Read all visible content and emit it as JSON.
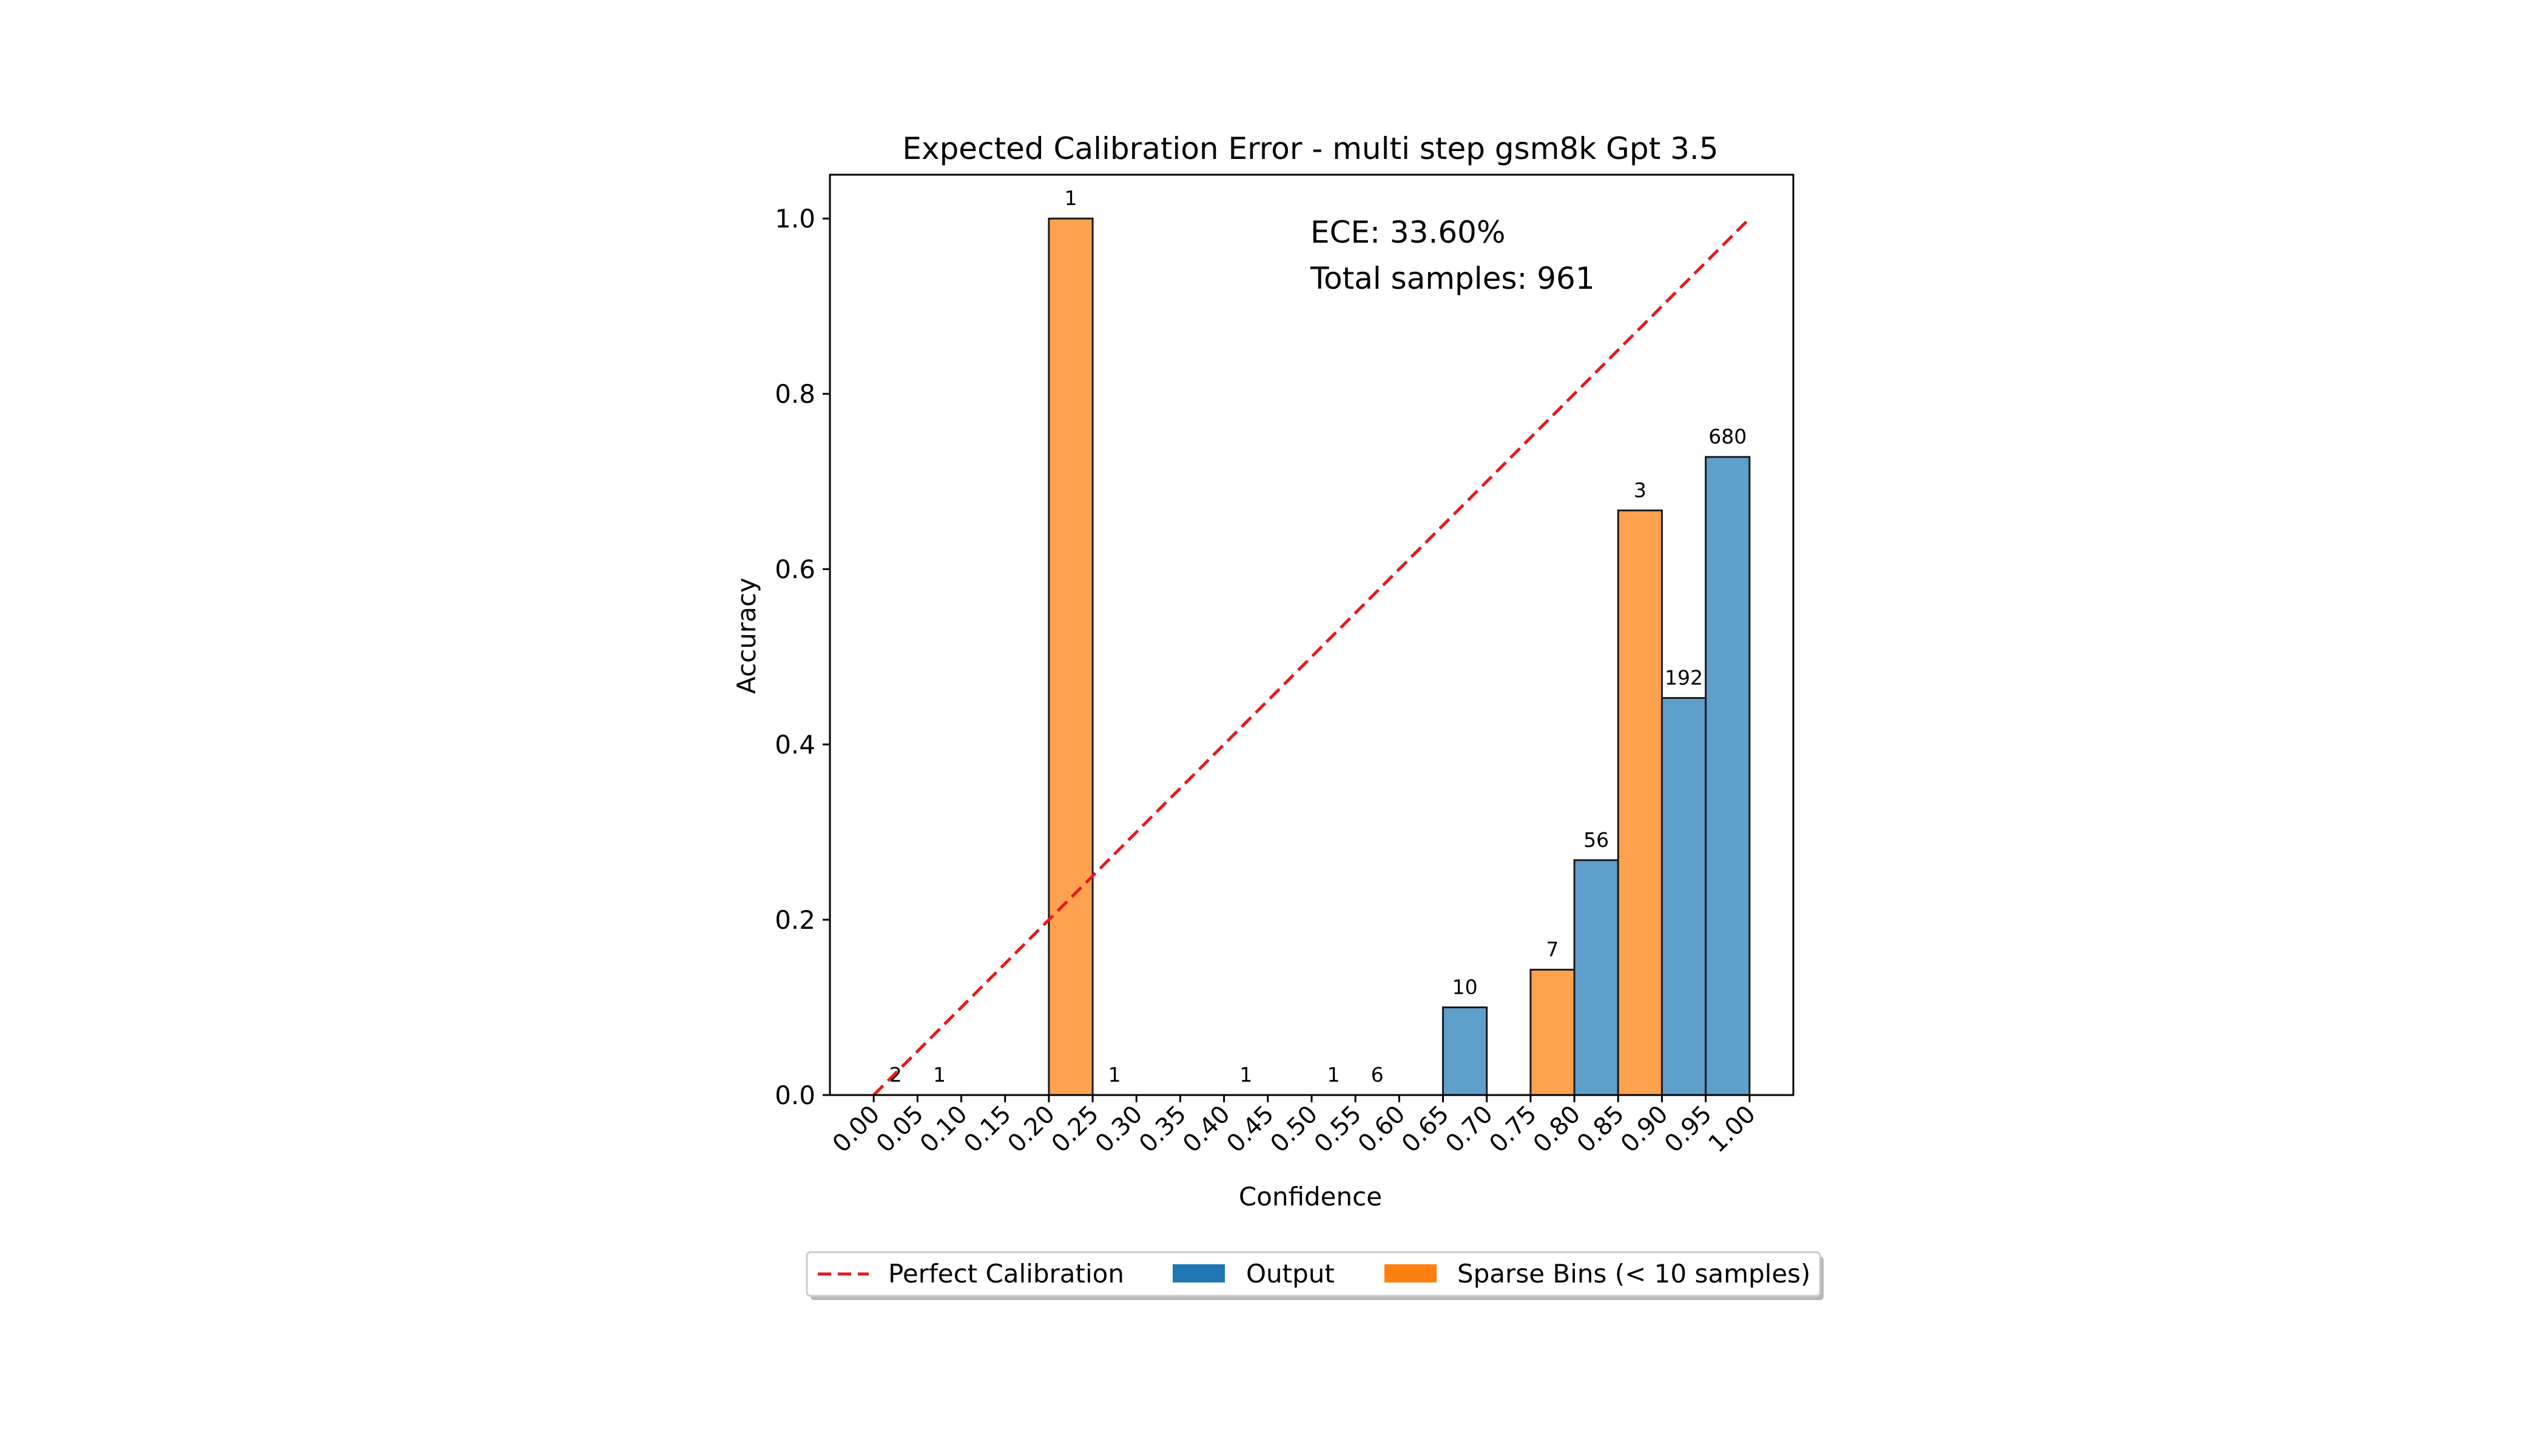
{
  "chart_data": {
    "type": "bar",
    "title": "Expected Calibration Error - multi step gsm8k Gpt 3.5",
    "xlabel": "Confidence",
    "ylabel": "Accuracy",
    "xlim": [
      -0.05,
      1.05
    ],
    "ylim": [
      0,
      1.05
    ],
    "bin_width": 0.05,
    "x_ticks": [
      "0.00",
      "0.05",
      "0.10",
      "0.15",
      "0.20",
      "0.25",
      "0.30",
      "0.35",
      "0.40",
      "0.45",
      "0.50",
      "0.55",
      "0.60",
      "0.65",
      "0.70",
      "0.75",
      "0.80",
      "0.85",
      "0.90",
      "0.95",
      "1.00"
    ],
    "y_ticks": [
      "0.0",
      "0.2",
      "0.4",
      "0.6",
      "0.8",
      "1.0"
    ],
    "annotations": [
      "ECE: 33.60%",
      "Total samples: 961"
    ],
    "reference_line": {
      "name": "Perfect Calibration",
      "from": [
        0,
        0
      ],
      "to": [
        1,
        1
      ],
      "color": "#e31a1c",
      "style": "dashed"
    },
    "bins": [
      {
        "left": 0.0,
        "accuracy": 0.0,
        "count": "2",
        "sparse": true
      },
      {
        "left": 0.05,
        "accuracy": 0.0,
        "count": "1",
        "sparse": true
      },
      {
        "left": 0.2,
        "accuracy": 1.0,
        "count": "1",
        "sparse": true
      },
      {
        "left": 0.25,
        "accuracy": 0.0,
        "count": "1",
        "sparse": true
      },
      {
        "left": 0.4,
        "accuracy": 0.0,
        "count": "1",
        "sparse": true
      },
      {
        "left": 0.5,
        "accuracy": 0.0,
        "count": "1",
        "sparse": true
      },
      {
        "left": 0.55,
        "accuracy": 0.0,
        "count": "6",
        "sparse": true
      },
      {
        "left": 0.65,
        "accuracy": 0.1,
        "count": "10",
        "sparse": false
      },
      {
        "left": 0.75,
        "accuracy": 0.143,
        "count": "7",
        "sparse": true
      },
      {
        "left": 0.8,
        "accuracy": 0.268,
        "count": "56",
        "sparse": false
      },
      {
        "left": 0.85,
        "accuracy": 0.667,
        "count": "3",
        "sparse": true
      },
      {
        "left": 0.9,
        "accuracy": 0.453,
        "count": "192",
        "sparse": false
      },
      {
        "left": 0.95,
        "accuracy": 0.728,
        "count": "680",
        "sparse": false
      }
    ],
    "legend": {
      "position": "bottom-center",
      "items": [
        {
          "label": "Perfect Calibration",
          "kind": "line",
          "color": "#e31a1c"
        },
        {
          "label": "Output",
          "kind": "patch",
          "color": "#1f77b4"
        },
        {
          "label": "Sparse Bins (< 10 samples)",
          "kind": "patch",
          "color": "#ff7f0e"
        }
      ]
    },
    "colors": {
      "output_fill": "#5f9fcc",
      "sparse_fill": "#ffa24f",
      "edge": "#1a1a1a"
    }
  }
}
